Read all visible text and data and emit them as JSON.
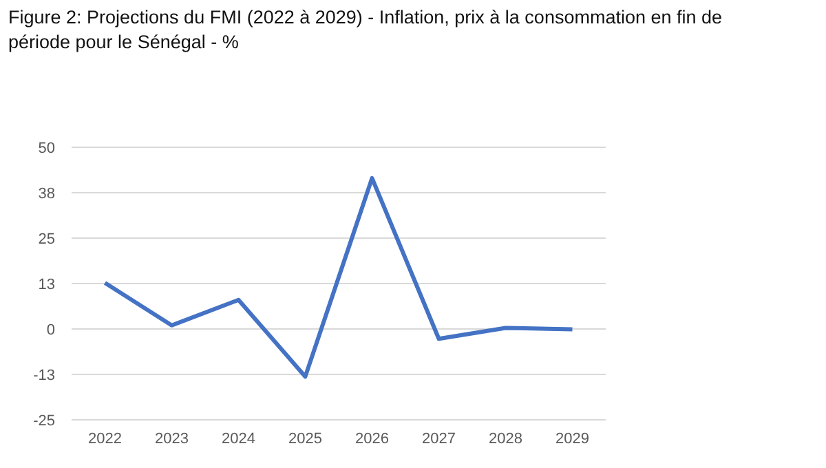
{
  "chart_data": {
    "type": "line",
    "title": "Figure 2: Projections du FMI (2022 à 2029) - Inflation, prix à la consommation en fin de période pour le Sénégal - %",
    "categories": [
      "2022",
      "2023",
      "2024",
      "2025",
      "2026",
      "2027",
      "2028",
      "2029"
    ],
    "series": [
      {
        "color": "#4472c4",
        "values": [
          12.7,
          1.0,
          8.0,
          -13.1,
          41.5,
          -2.7,
          0.3,
          -0.1
        ]
      }
    ],
    "ylim": [
      -25,
      50
    ],
    "yticks": [
      -25,
      {
        "value": -12.5,
        "label": "-13"
      },
      0,
      {
        "value": 12.5,
        "label": "13"
      },
      25,
      {
        "value": 37.5,
        "label": "38"
      },
      50
    ],
    "grid": "y",
    "marker": "none",
    "line_style": "solid"
  }
}
